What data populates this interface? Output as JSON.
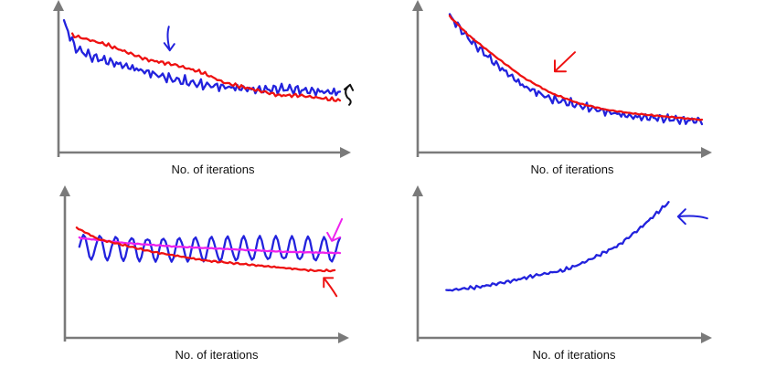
{
  "colors": {
    "axis": "#7a7a7a",
    "blue": "#2222dd",
    "red": "#ee1111",
    "magenta": "#ee22ee",
    "black": "#111111"
  },
  "chart_data": [
    {
      "type": "line",
      "position_word": "top-left",
      "xlabel": "No. of iterations",
      "ylabel": "",
      "xlim": [
        0,
        100
      ],
      "ylim": [
        0,
        100
      ],
      "grid": false,
      "series": [
        {
          "color": "#2222dd",
          "noise": 3.5,
          "period": 4,
          "points": [
            [
              0,
              95
            ],
            [
              4,
              75
            ],
            [
              10,
              68
            ],
            [
              20,
              62
            ],
            [
              30,
              56
            ],
            [
              40,
              50
            ],
            [
              50,
              46
            ],
            [
              60,
              44
            ],
            [
              70,
              42
            ],
            [
              80,
              43
            ],
            [
              90,
              41
            ],
            [
              100,
              40
            ]
          ]
        },
        {
          "color": "#ee1111",
          "noise": 1.2,
          "period": 3,
          "points": [
            [
              3,
              85
            ],
            [
              15,
              78
            ],
            [
              30,
              66
            ],
            [
              40,
              62
            ],
            [
              50,
              56
            ],
            [
              58,
              48
            ],
            [
              70,
              42
            ],
            [
              78,
              38
            ],
            [
              85,
              38
            ],
            [
              100,
              34
            ]
          ]
        }
      ],
      "annotations": [
        {
          "type": "arrow-down",
          "color": "#2222dd",
          "at": [
            38,
            82
          ]
        },
        {
          "type": "curl",
          "color": "#111111",
          "at": [
            103,
            38
          ]
        }
      ]
    },
    {
      "type": "line",
      "position_word": "top-right",
      "xlabel": "No. of iterations",
      "ylabel": "",
      "xlim": [
        0,
        100
      ],
      "ylim": [
        0,
        100
      ],
      "grid": false,
      "series": [
        {
          "color": "#2222dd",
          "noise": 3,
          "period": 4,
          "points": [
            [
              8,
              100
            ],
            [
              15,
              82
            ],
            [
              25,
              62
            ],
            [
              35,
              45
            ],
            [
              45,
              35
            ],
            [
              55,
              30
            ],
            [
              65,
              25
            ],
            [
              75,
              21
            ],
            [
              85,
              20
            ],
            [
              95,
              18
            ],
            [
              100,
              18
            ]
          ]
        },
        {
          "color": "#ee1111",
          "noise": 0.4,
          "period": 5,
          "points": [
            [
              8,
              100
            ],
            [
              15,
              85
            ],
            [
              25,
              68
            ],
            [
              35,
              52
            ],
            [
              45,
              40
            ],
            [
              55,
              32
            ],
            [
              65,
              27
            ],
            [
              75,
              24
            ],
            [
              85,
              22
            ],
            [
              100,
              19
            ]
          ]
        }
      ],
      "annotations": [
        {
          "type": "arrow-left-down",
          "color": "#ee1111",
          "at": [
            47,
            62
          ]
        }
      ]
    },
    {
      "type": "line",
      "position_word": "bottom-left",
      "xlabel": "No. of iterations",
      "ylabel": "",
      "xlim": [
        0,
        100
      ],
      "ylim": [
        0,
        100
      ],
      "grid": false,
      "series": [
        {
          "color": "#2222dd",
          "noise": 0,
          "period": 4,
          "oscillate": 11,
          "points": [
            [
              3,
              65
            ],
            [
              100,
              62
            ]
          ]
        },
        {
          "color": "#ee22ee",
          "noise": 0.3,
          "period": 5,
          "points": [
            [
              3,
              72
            ],
            [
              20,
              68
            ],
            [
              40,
              65
            ],
            [
              60,
              63
            ],
            [
              80,
              61
            ],
            [
              100,
              60
            ]
          ]
        },
        {
          "color": "#ee1111",
          "noise": 0.6,
          "period": 4,
          "points": [
            [
              2,
              80
            ],
            [
              10,
              71
            ],
            [
              30,
              61
            ],
            [
              50,
              54
            ],
            [
              70,
              50
            ],
            [
              90,
              46
            ],
            [
              98,
              46
            ]
          ]
        }
      ],
      "annotations": [
        {
          "type": "arrow-down-left",
          "color": "#ee22ee",
          "at": [
            98,
            74
          ]
        },
        {
          "type": "arrow-up-left",
          "color": "#ee1111",
          "at": [
            96,
            36
          ]
        }
      ]
    },
    {
      "type": "line",
      "position_word": "bottom-right",
      "xlabel": "No. of iterations",
      "ylabel": "",
      "xlim": [
        0,
        100
      ],
      "ylim": [
        0,
        100
      ],
      "grid": false,
      "series": [
        {
          "color": "#2222dd",
          "noise": 1.2,
          "period": 3,
          "points": [
            [
              8,
              30
            ],
            [
              20,
              33
            ],
            [
              30,
              37
            ],
            [
              40,
              42
            ],
            [
              50,
              46
            ],
            [
              55,
              50
            ],
            [
              60,
              55
            ],
            [
              70,
              66
            ],
            [
              78,
              80
            ],
            [
              83,
              90
            ],
            [
              88,
              100
            ]
          ]
        }
      ],
      "annotations": [
        {
          "type": "arrow-left",
          "color": "#2222dd",
          "at": [
            96,
            89
          ]
        }
      ]
    }
  ]
}
